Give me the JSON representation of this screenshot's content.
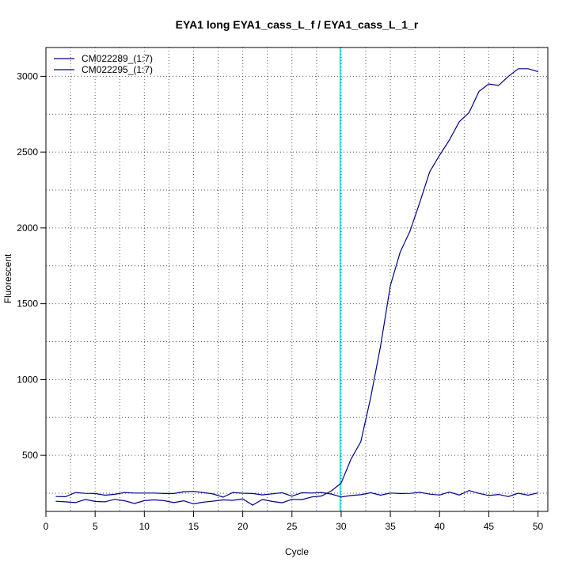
{
  "chart_data": {
    "type": "line",
    "title": "EYA1 long EYA1_cass_L_f / EYA1_cass_L_1_r",
    "xlabel": "Cycle",
    "ylabel": "Fluorescent",
    "xlim": [
      0,
      51
    ],
    "ylim": [
      130,
      3190
    ],
    "xticks": [
      0,
      5,
      10,
      15,
      20,
      25,
      30,
      35,
      40,
      45,
      50
    ],
    "yticks": [
      500,
      1000,
      1500,
      2000,
      2500,
      3000
    ],
    "grid": true,
    "legend_position": "top-left",
    "threshold_line": {
      "x": 29.9,
      "color": "#00e5ee"
    },
    "series": [
      {
        "name": "CM022289_(1:7)",
        "color": "#00008b",
        "x": [
          1,
          2,
          3,
          4,
          5,
          6,
          7,
          8,
          9,
          10,
          11,
          12,
          13,
          14,
          15,
          16,
          17,
          18,
          19,
          20,
          21,
          22,
          23,
          24,
          25,
          26,
          27,
          28,
          29,
          30,
          31,
          32,
          33,
          34,
          35,
          36,
          37,
          38,
          39,
          40,
          41,
          42,
          43,
          44,
          45,
          46,
          47,
          48,
          49,
          50
        ],
        "y": [
          197,
          193,
          188,
          209,
          196,
          193,
          210,
          200,
          182,
          201,
          206,
          201,
          188,
          200,
          180,
          191,
          198,
          206,
          203,
          213,
          172,
          209,
          196,
          187,
          210,
          208,
          225,
          232,
          265,
          317,
          475,
          590,
          880,
          1220,
          1620,
          1840,
          1980,
          2170,
          2370,
          2480,
          2580,
          2700,
          2760,
          2900,
          2950,
          2940,
          3000,
          3050,
          3050,
          3030
        ]
      },
      {
        "name": "CM022295_(1:7)",
        "color": "#00008b",
        "x": [
          1,
          2,
          3,
          4,
          5,
          6,
          7,
          8,
          9,
          10,
          11,
          12,
          13,
          14,
          15,
          16,
          17,
          18,
          19,
          20,
          21,
          22,
          23,
          24,
          25,
          26,
          27,
          28,
          29,
          30,
          31,
          32,
          33,
          34,
          35,
          36,
          37,
          38,
          39,
          40,
          41,
          42,
          43,
          44,
          45,
          46,
          47,
          48,
          49,
          50
        ],
        "y": [
          228,
          227,
          255,
          249,
          248,
          237,
          243,
          255,
          251,
          251,
          251,
          248,
          248,
          260,
          262,
          255,
          245,
          224,
          255,
          250,
          248,
          239,
          246,
          253,
          230,
          253,
          251,
          255,
          245,
          225,
          235,
          240,
          253,
          237,
          251,
          248,
          249,
          256,
          244,
          238,
          258,
          238,
          268,
          249,
          235,
          242,
          228,
          250,
          237,
          252
        ]
      }
    ]
  }
}
